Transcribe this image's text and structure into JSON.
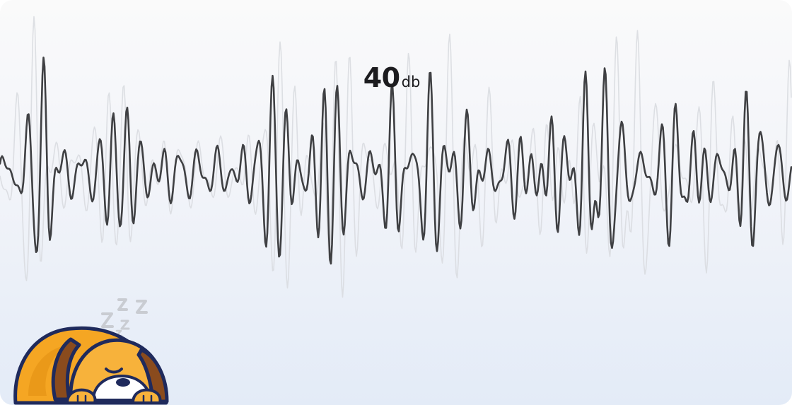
{
  "sound_level": {
    "value": "40",
    "unit": "db"
  },
  "colors": {
    "waveform": "#3f4043",
    "waveform_ghost": "#d9dbe0",
    "dog_body": "#f5a623",
    "dog_outline": "#1f2a5c",
    "zzz": "#c9ccd2"
  },
  "illustration": {
    "icon": "sleeping-dog-icon",
    "zzz_icon": "zzz-icon"
  }
}
